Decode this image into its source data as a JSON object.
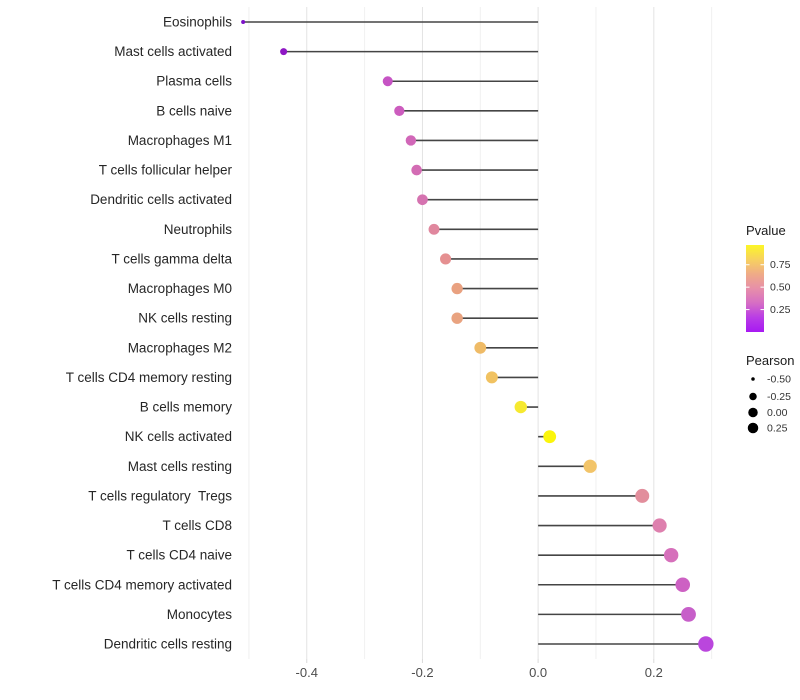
{
  "chart_data": {
    "type": "scatter",
    "variant": "lollipop",
    "title": "",
    "xlabel": "",
    "ylabel": "",
    "xlim": [
      -0.55,
      0.33
    ],
    "x_major_ticks": [
      {
        "value": -0.4,
        "label": "-0.4"
      },
      {
        "value": -0.2,
        "label": "-0.2"
      },
      {
        "value": 0.0,
        "label": "0.0"
      },
      {
        "value": 0.2,
        "label": "0.2"
      }
    ],
    "x_minor_gridlines": [
      -0.5,
      -0.3,
      -0.1,
      0.1,
      0.3
    ],
    "grid": "vertical-only",
    "baseline_value": 0.0,
    "points": [
      {
        "label": "Eosinophils",
        "pearson": -0.51,
        "color": "#7d12c8",
        "radius": 2.0
      },
      {
        "label": "Mast cells activated",
        "pearson": -0.44,
        "color": "#8e17c4",
        "radius": 3.5
      },
      {
        "label": "Plasma cells",
        "pearson": -0.26,
        "color": "#c654c4",
        "radius": 5.0
      },
      {
        "label": "B cells naive",
        "pearson": -0.24,
        "color": "#cc5cbe",
        "radius": 5.1
      },
      {
        "label": "Macrophages M1",
        "pearson": -0.22,
        "color": "#d167b8",
        "radius": 5.2
      },
      {
        "label": "T cells follicular helper",
        "pearson": -0.21,
        "color": "#d36cb4",
        "radius": 5.3
      },
      {
        "label": "Dendritic cells activated",
        "pearson": -0.2,
        "color": "#d573b0",
        "radius": 5.35
      },
      {
        "label": "Neutrophils",
        "pearson": -0.18,
        "color": "#e0879e",
        "radius": 5.45
      },
      {
        "label": "T cells gamma delta",
        "pearson": -0.16,
        "color": "#e59091",
        "radius": 5.55
      },
      {
        "label": "Macrophages M0",
        "pearson": -0.14,
        "color": "#e9a180",
        "radius": 5.65
      },
      {
        "label": "NK cells resting",
        "pearson": -0.14,
        "color": "#e9a380",
        "radius": 5.7
      },
      {
        "label": "Macrophages M2",
        "pearson": -0.1,
        "color": "#efbb67",
        "radius": 5.9
      },
      {
        "label": "T cells CD4 memory resting",
        "pearson": -0.08,
        "color": "#f1c261",
        "radius": 6.0
      },
      {
        "label": "B cells memory",
        "pearson": -0.03,
        "color": "#f6e930",
        "radius": 6.2
      },
      {
        "label": "NK cells activated",
        "pearson": 0.02,
        "color": "#fbf50b",
        "radius": 6.4
      },
      {
        "label": "Mast cells resting",
        "pearson": 0.09,
        "color": "#f2c469",
        "radius": 6.65
      },
      {
        "label": "T cells regulatory  Tregs",
        "pearson": 0.18,
        "color": "#e28e9c",
        "radius": 7.0
      },
      {
        "label": "T cells CD8",
        "pearson": 0.21,
        "color": "#de80ae",
        "radius": 7.1
      },
      {
        "label": "T cells CD4 naive",
        "pearson": 0.23,
        "color": "#d670bb",
        "radius": 7.2
      },
      {
        "label": "T cells CD4 memory activated",
        "pearson": 0.25,
        "color": "#cd61c3",
        "radius": 7.3
      },
      {
        "label": "Monocytes",
        "pearson": 0.26,
        "color": "#c75fc9",
        "radius": 7.4
      },
      {
        "label": "Dendritic cells resting",
        "pearson": 0.29,
        "color": "#ba46dd",
        "radius": 7.7
      }
    ],
    "legend_position": "right"
  },
  "legend": {
    "pvalue": {
      "title": "Pvalue",
      "gradient_top_to_bottom": [
        "#fcf626",
        "#f7d15f",
        "#efab87",
        "#e78fa9",
        "#d66ec4",
        "#b93ce6",
        "#a719f2"
      ],
      "ticks": [
        {
          "label": "0.75",
          "value": 0.75
        },
        {
          "label": "0.50",
          "value": 0.5
        },
        {
          "label": "0.25",
          "value": 0.25
        }
      ],
      "bar_value_range": [
        0,
        0.97
      ]
    },
    "pearson": {
      "title": "Pearson",
      "items": [
        {
          "label": "-0.50",
          "radius": 1.75
        },
        {
          "label": "-0.25",
          "radius": 3.75
        },
        {
          "label": "0.00",
          "radius": 4.75
        },
        {
          "label": "0.25",
          "radius": 5.25
        }
      ],
      "dot_color": "#000000"
    }
  },
  "style_colors": {
    "background": "#ffffff",
    "stem": "#454545",
    "grid_major": "#e3e3e3",
    "grid_minor": "#f0f0f0",
    "axis_tick": "#d9d9d9",
    "y_label_text": "#262626",
    "x_label_text": "#4d4d4d"
  }
}
